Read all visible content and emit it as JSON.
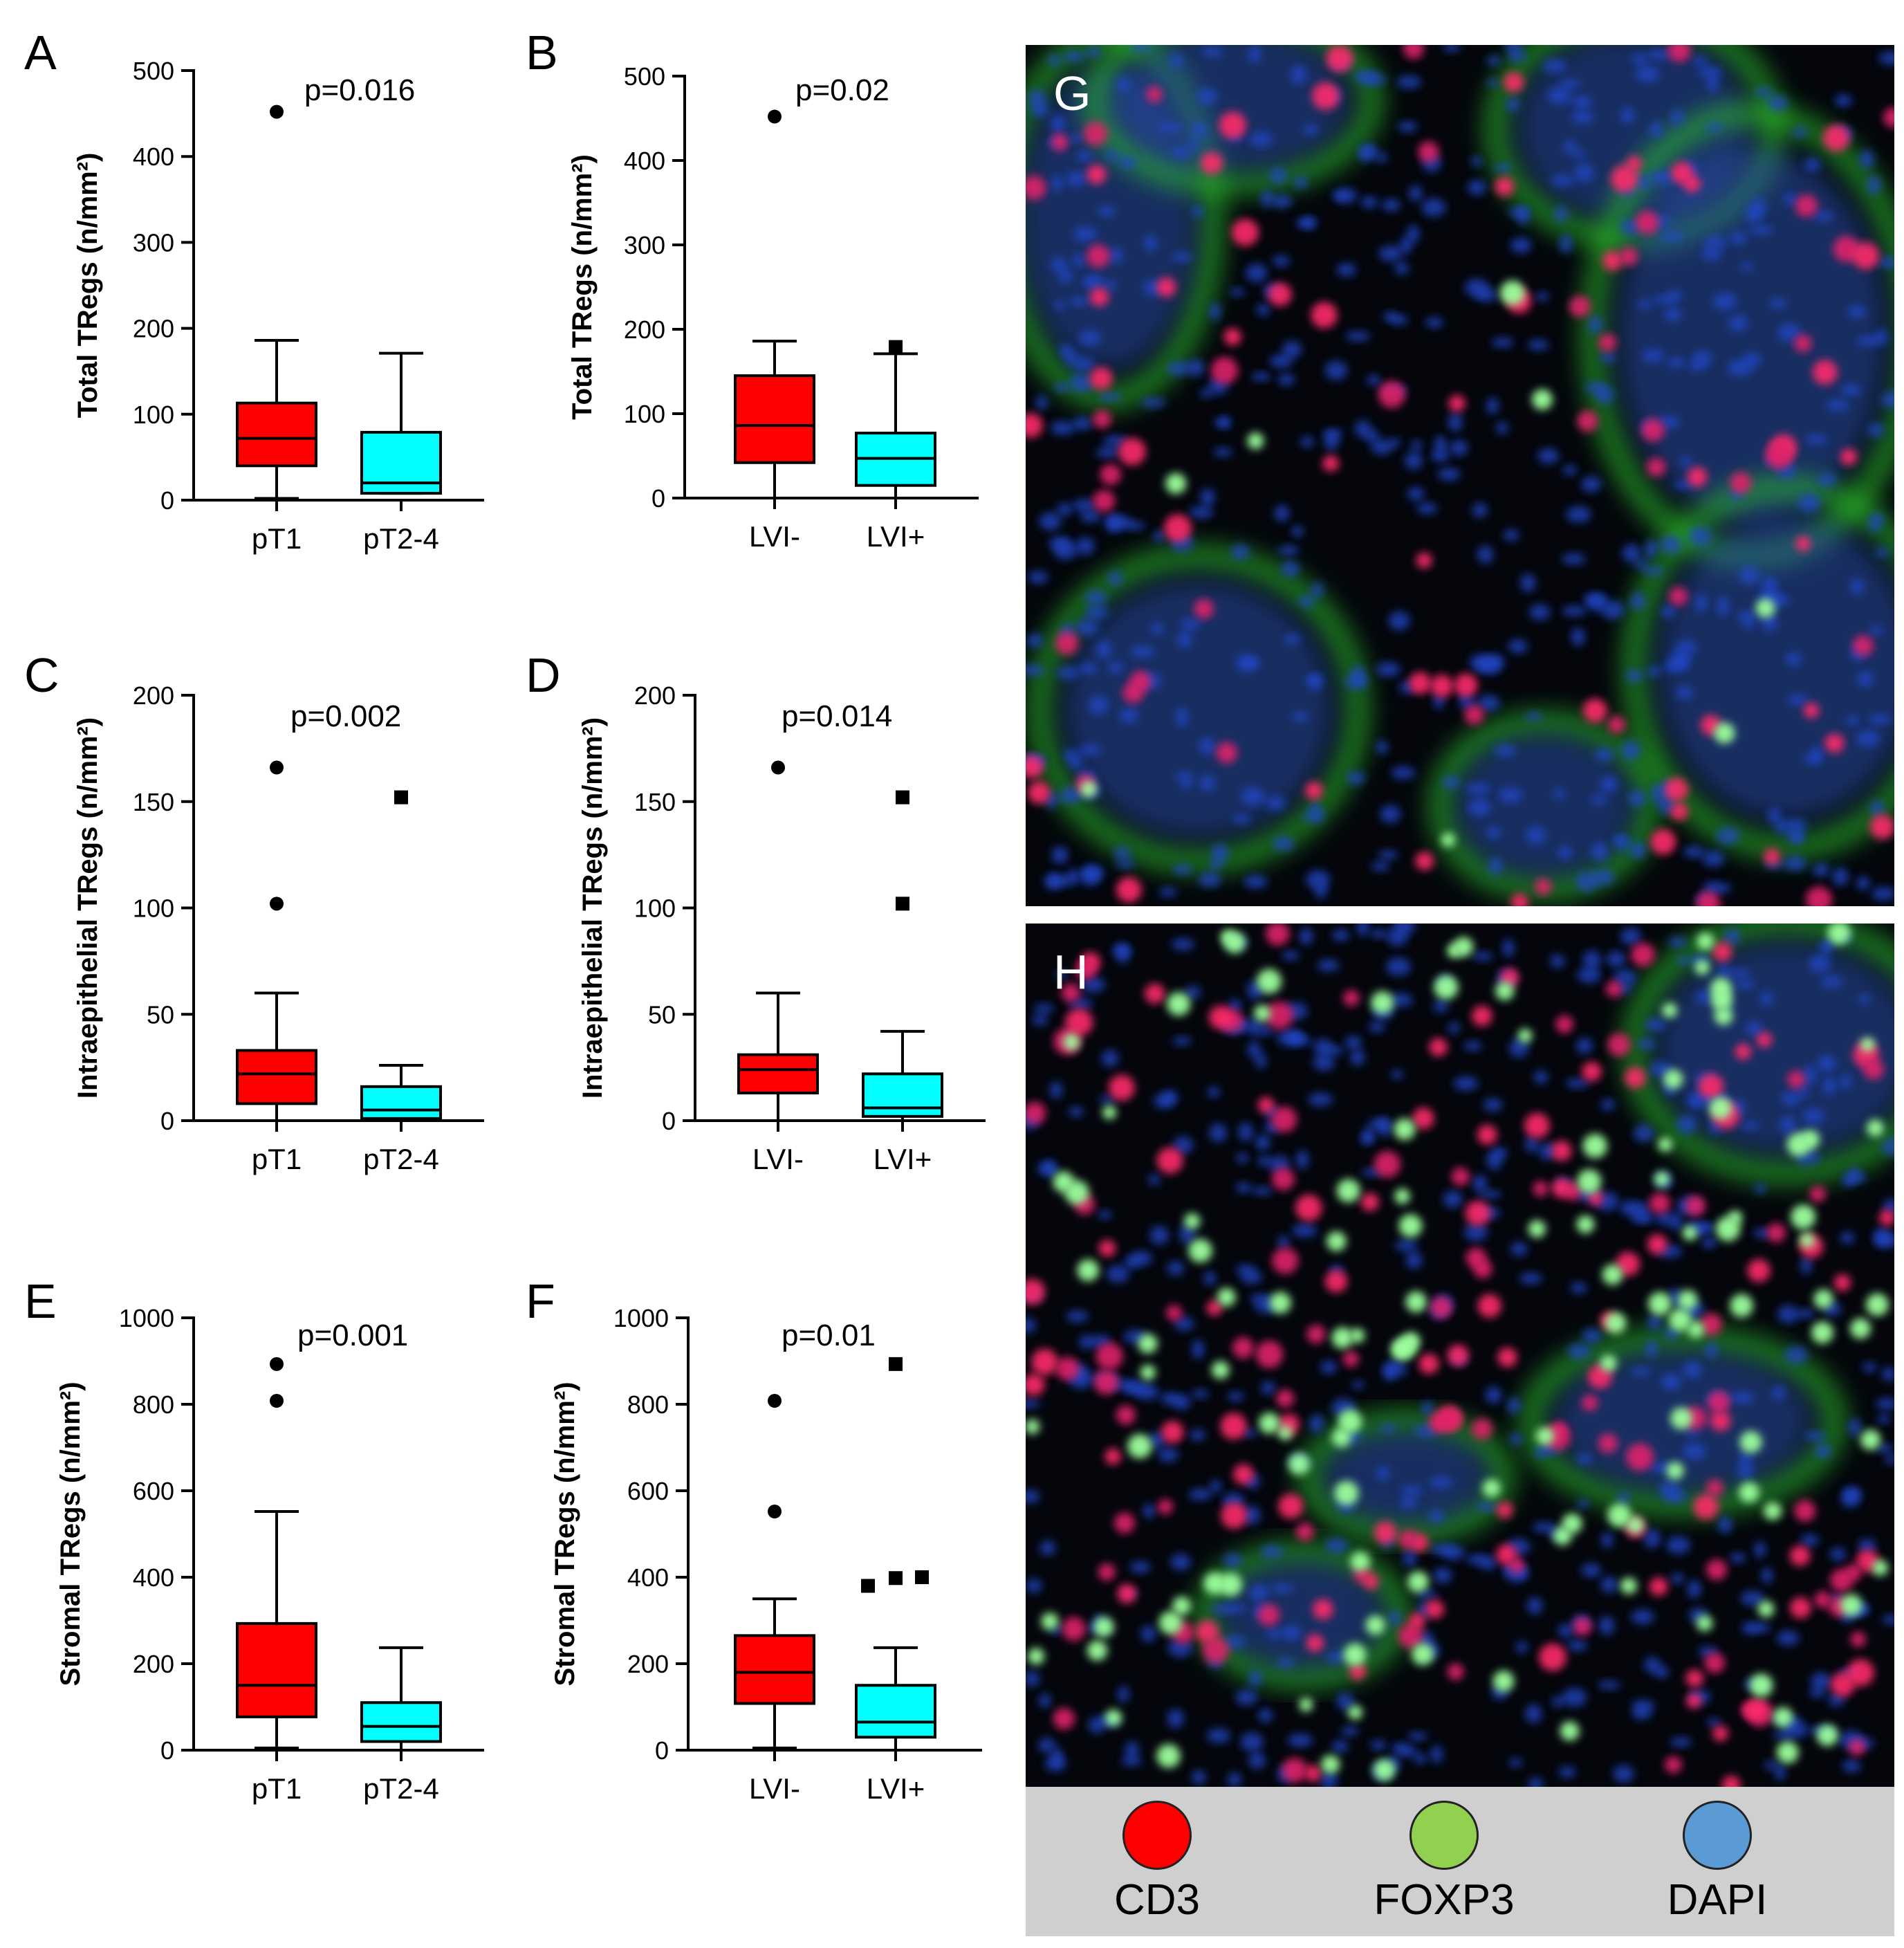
{
  "chart_data": [
    {
      "panel": "A",
      "type": "box",
      "p_value": "p=0.016",
      "ylabel": "Total TRegs (n/mm²)",
      "ylim": [
        0,
        500
      ],
      "yticks": [
        "0",
        "100",
        "200",
        "300",
        "400",
        "500"
      ],
      "categories": [
        "pT1",
        "pT2-4"
      ],
      "boxes": [
        {
          "color": "#ff0000",
          "q1": 40,
          "median": 72,
          "q3": 113,
          "whisker_low": 2,
          "whisker_high": 186,
          "outliers": [
            452
          ],
          "marker": "circle"
        },
        {
          "color": "#00ffff",
          "q1": 8,
          "median": 20,
          "q3": 79,
          "whisker_low": 8,
          "whisker_high": 171,
          "outliers": [],
          "marker": "square"
        }
      ]
    },
    {
      "panel": "B",
      "type": "box",
      "p_value": "p=0.02",
      "ylabel": "Total TRegs (n/mm²)",
      "ylim": [
        0,
        500
      ],
      "yticks": [
        "0",
        "100",
        "200",
        "300",
        "400",
        "500"
      ],
      "categories": [
        "LVI-",
        "LVI+"
      ],
      "boxes": [
        {
          "color": "#ff0000",
          "q1": 42,
          "median": 86,
          "q3": 145,
          "whisker_low": 0,
          "whisker_high": 186,
          "outliers": [
            452
          ],
          "marker": "circle"
        },
        {
          "color": "#00ffff",
          "q1": 15,
          "median": 47,
          "q3": 77,
          "whisker_low": 0,
          "whisker_high": 171,
          "outliers": [
            179
          ],
          "marker": "square"
        }
      ]
    },
    {
      "panel": "C",
      "type": "box",
      "p_value": "p=0.002",
      "ylabel": "Intraepithelial TRegs (n/mm²)",
      "ylim": [
        0,
        200
      ],
      "yticks": [
        "0",
        "50",
        "100",
        "150",
        "200"
      ],
      "categories": [
        "pT1",
        "pT2-4"
      ],
      "boxes": [
        {
          "color": "#ff0000",
          "q1": 8,
          "median": 22,
          "q3": 33,
          "whisker_low": 0,
          "whisker_high": 60,
          "outliers": [
            102,
            166
          ],
          "marker": "circle"
        },
        {
          "color": "#00ffff",
          "q1": 1,
          "median": 5,
          "q3": 16,
          "whisker_low": 0,
          "whisker_high": 26,
          "outliers": [
            152
          ],
          "marker": "square"
        }
      ]
    },
    {
      "panel": "D",
      "type": "box",
      "p_value": "p=0.014",
      "ylabel": "Intraepithelial TRegs (n/mm²)",
      "ylim": [
        0,
        200
      ],
      "yticks": [
        "0",
        "50",
        "100",
        "150",
        "200"
      ],
      "categories": [
        "LVI-",
        "LVI+"
      ],
      "boxes": [
        {
          "color": "#ff0000",
          "q1": 13,
          "median": 24,
          "q3": 31,
          "whisker_low": 0,
          "whisker_high": 60,
          "outliers": [
            166
          ],
          "marker": "circle"
        },
        {
          "color": "#00ffff",
          "q1": 2,
          "median": 6,
          "q3": 22,
          "whisker_low": 0,
          "whisker_high": 42,
          "outliers": [
            102,
            152
          ],
          "marker": "square"
        }
      ]
    },
    {
      "panel": "E",
      "type": "box",
      "p_value": "p=0.001",
      "ylabel": "Stromal TRegs (n/mm²)",
      "ylim": [
        0,
        1000
      ],
      "yticks": [
        "0",
        "200",
        "400",
        "600",
        "800",
        "1000"
      ],
      "categories": [
        "pT1",
        "pT2-4"
      ],
      "boxes": [
        {
          "color": "#ff0000",
          "q1": 77,
          "median": 150,
          "q3": 293,
          "whisker_low": 5,
          "whisker_high": 552,
          "outliers": [
            808,
            893
          ],
          "marker": "circle"
        },
        {
          "color": "#00ffff",
          "q1": 20,
          "median": 55,
          "q3": 110,
          "whisker_low": 0,
          "whisker_high": 237,
          "outliers": [],
          "marker": "square"
        }
      ]
    },
    {
      "panel": "F",
      "type": "box",
      "p_value": "p=0.01",
      "ylabel": "Stromal TRegs (n/mm²)",
      "ylim": [
        0,
        1000
      ],
      "yticks": [
        "0",
        "200",
        "400",
        "600",
        "800",
        "1000"
      ],
      "categories": [
        "LVI-",
        "LVI+"
      ],
      "boxes": [
        {
          "color": "#ff0000",
          "q1": 108,
          "median": 180,
          "q3": 265,
          "whisker_low": 5,
          "whisker_high": 350,
          "outliers": [
            552,
            808
          ],
          "marker": "circle"
        },
        {
          "color": "#00ffff",
          "q1": 30,
          "median": 65,
          "q3": 150,
          "whisker_low": 0,
          "whisker_high": 237,
          "outliers": [
            380,
            398,
            400,
            893
          ],
          "marker": "square"
        }
      ]
    }
  ],
  "micrographs": [
    {
      "label": "G"
    },
    {
      "label": "H"
    }
  ],
  "legend": [
    {
      "label": "CD3",
      "color": "#ff0000"
    },
    {
      "label": "FOXP3",
      "color": "#92d050"
    },
    {
      "label": "DAPI",
      "color": "#5b9bd5"
    }
  ]
}
